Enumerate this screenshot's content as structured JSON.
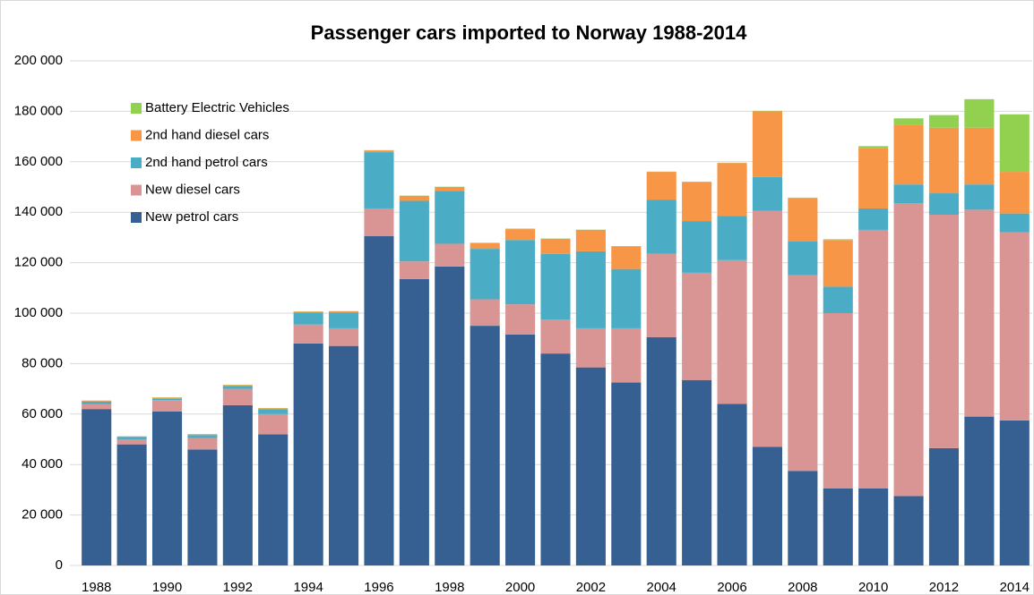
{
  "chart_data": {
    "type": "stacked_bar",
    "title": "Passenger cars imported to Norway 1988-2014",
    "categories": [
      "1988",
      null,
      "1990",
      null,
      "1992",
      null,
      "1994",
      null,
      "1996",
      null,
      "1998",
      null,
      "2000",
      null,
      "2002",
      null,
      "2004",
      null,
      "2006",
      null,
      "2008",
      null,
      "2010",
      null,
      "2012",
      null,
      "2014"
    ],
    "series": [
      {
        "name": "New petrol cars",
        "color": "#376092",
        "values": [
          62000,
          48000,
          61000,
          46000,
          63500,
          52000,
          88000,
          87000,
          130500,
          113500,
          118500,
          95000,
          91500,
          84000,
          78500,
          72500,
          90500,
          73500,
          64000,
          47000,
          37500,
          30500,
          30500,
          27500,
          46500,
          59000,
          57500
        ]
      },
      {
        "name": "New diesel cars",
        "color": "#d99594",
        "values": [
          2000,
          2000,
          4500,
          4500,
          6500,
          8000,
          7500,
          7000,
          11000,
          7000,
          9000,
          10500,
          12000,
          13500,
          15500,
          21500,
          33000,
          42500,
          57000,
          93500,
          77500,
          69500,
          102500,
          116000,
          92500,
          82000,
          74500
        ]
      },
      {
        "name": "2nd hand petrol cars",
        "color": "#4bacc6",
        "values": [
          1000,
          1000,
          700,
          1200,
          1200,
          2000,
          4800,
          6300,
          22300,
          24000,
          21000,
          20000,
          25500,
          26000,
          30500,
          23500,
          21500,
          20500,
          17500,
          13500,
          13500,
          10500,
          8500,
          7500,
          8500,
          10000,
          7500
        ]
      },
      {
        "name": "2nd hand diesel cars",
        "color": "#f79646",
        "values": [
          300,
          200,
          300,
          300,
          300,
          300,
          300,
          400,
          700,
          2000,
          1500,
          2300,
          4300,
          6000,
          8500,
          9000,
          11000,
          15500,
          21000,
          26000,
          17000,
          18500,
          24000,
          23500,
          26000,
          22500,
          16500
        ]
      },
      {
        "name": "Battery Electric Vehicles",
        "color": "#92d050",
        "values": [
          100,
          0,
          100,
          100,
          100,
          100,
          100,
          100,
          100,
          100,
          100,
          100,
          200,
          100,
          100,
          100,
          100,
          100,
          100,
          200,
          300,
          300,
          700,
          2700,
          5000,
          11300,
          22800
        ]
      }
    ],
    "ylim": [
      0,
      200000
    ],
    "yticks": [
      0,
      {
        "value": 20000,
        "label": "20 000"
      },
      {
        "value": 40000,
        "label": "40 000"
      },
      {
        "value": 60000,
        "label": "60 000"
      },
      {
        "value": 80000,
        "label": "80 000"
      },
      {
        "value": 100000,
        "label": "100 000"
      },
      {
        "value": 120000,
        "label": "120 000"
      },
      {
        "value": 140000,
        "label": "140 000"
      },
      {
        "value": 160000,
        "label": "160 000"
      },
      {
        "value": 180000,
        "label": "180 000"
      },
      {
        "value": 200000,
        "label": "200 000"
      }
    ],
    "grid": true,
    "legend": "upper left"
  }
}
